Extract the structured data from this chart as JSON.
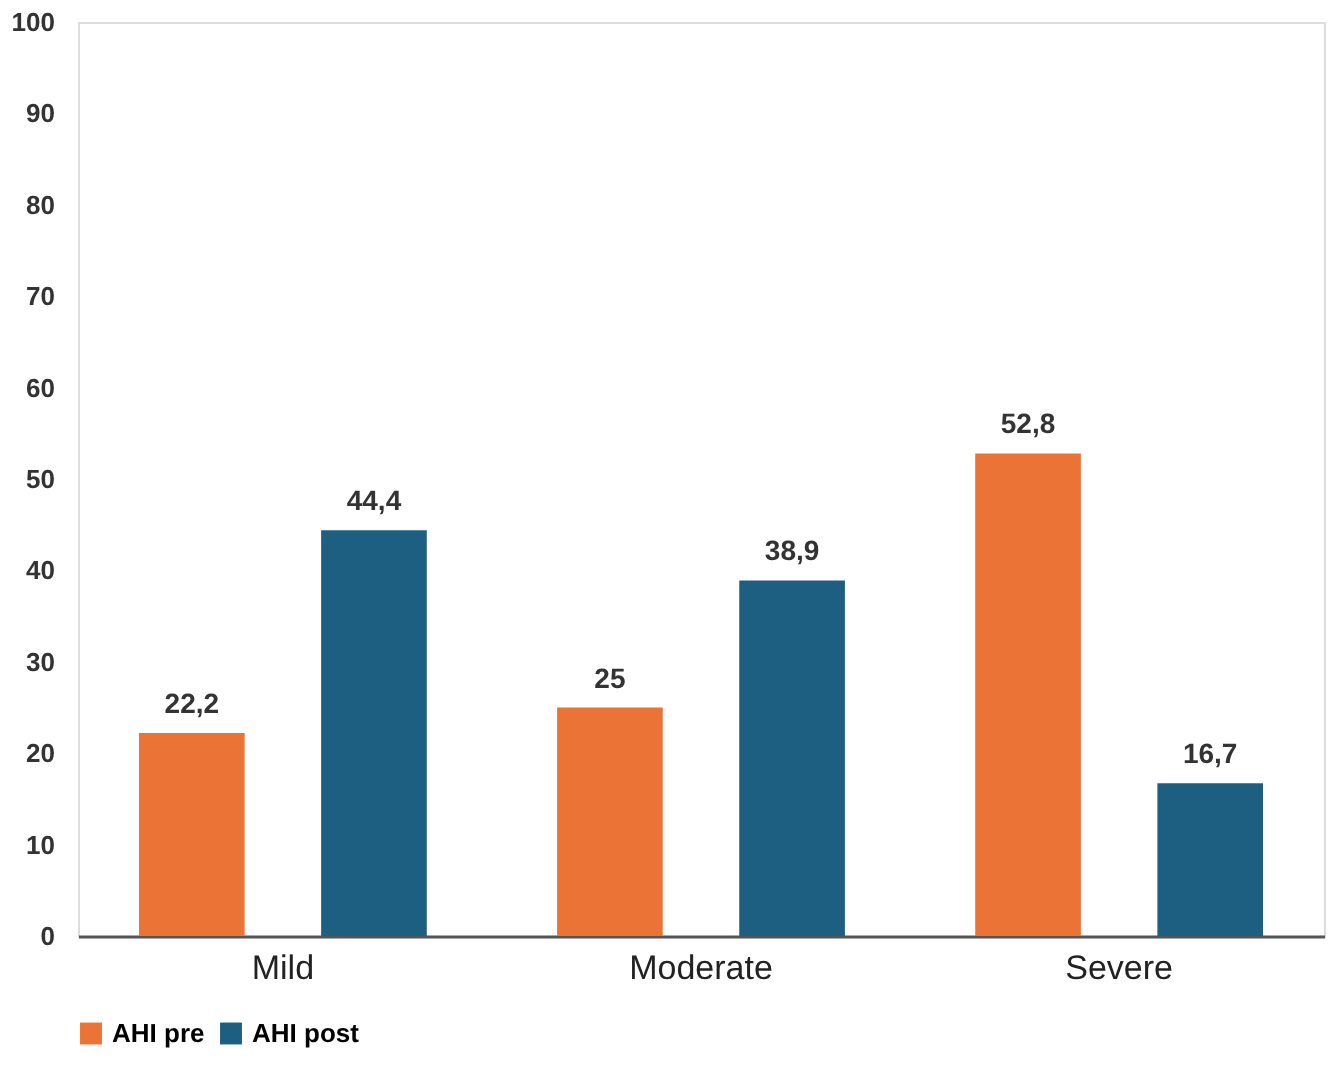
{
  "chart_data": {
    "type": "bar",
    "categories": [
      "Mild",
      "Moderate",
      "Severe"
    ],
    "series": [
      {
        "name": "AHI pre",
        "color": "#ea7335",
        "values": [
          22.2,
          25,
          52.8
        ],
        "value_labels": [
          "22,2",
          "25",
          "52,8"
        ]
      },
      {
        "name": "AHI post",
        "color": "#1c5f80",
        "values": [
          44.4,
          38.9,
          16.7
        ],
        "value_labels": [
          "44,4",
          "38,9",
          "16,7"
        ]
      }
    ],
    "ylim": [
      0,
      100
    ],
    "yticks": [
      0,
      10,
      20,
      30,
      40,
      50,
      60,
      70,
      80,
      90,
      100
    ],
    "grid": false,
    "legend": "bottom"
  }
}
